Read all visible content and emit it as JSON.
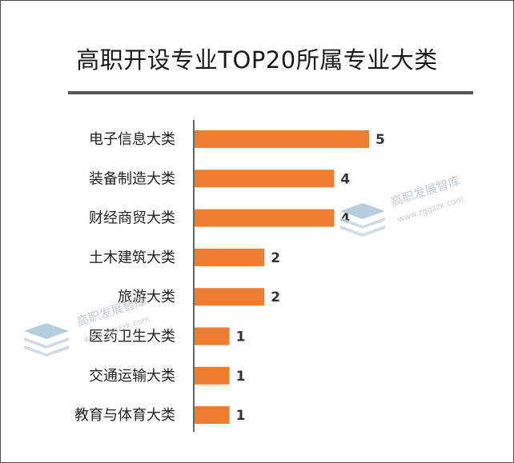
{
  "chart_data": {
    "type": "bar",
    "orientation": "horizontal",
    "title": "高职开设专业TOP20所属专业大类",
    "categories": [
      "电子信息大类",
      "装备制造大类",
      "财经商贸大类",
      "土木建筑大类",
      "旅游大类",
      "医药卫生大类",
      "交通运输大类",
      "教育与体育大类"
    ],
    "values": [
      5,
      4,
      4,
      2,
      2,
      1,
      1,
      1
    ],
    "xlim": [
      0,
      5
    ],
    "grid": false,
    "legend": "none",
    "bar_color": "#ED7D31"
  },
  "watermark": {
    "text": "高职发展智库",
    "url": "www.zggzzk.com",
    "icon": "stacked-layers-icon"
  }
}
